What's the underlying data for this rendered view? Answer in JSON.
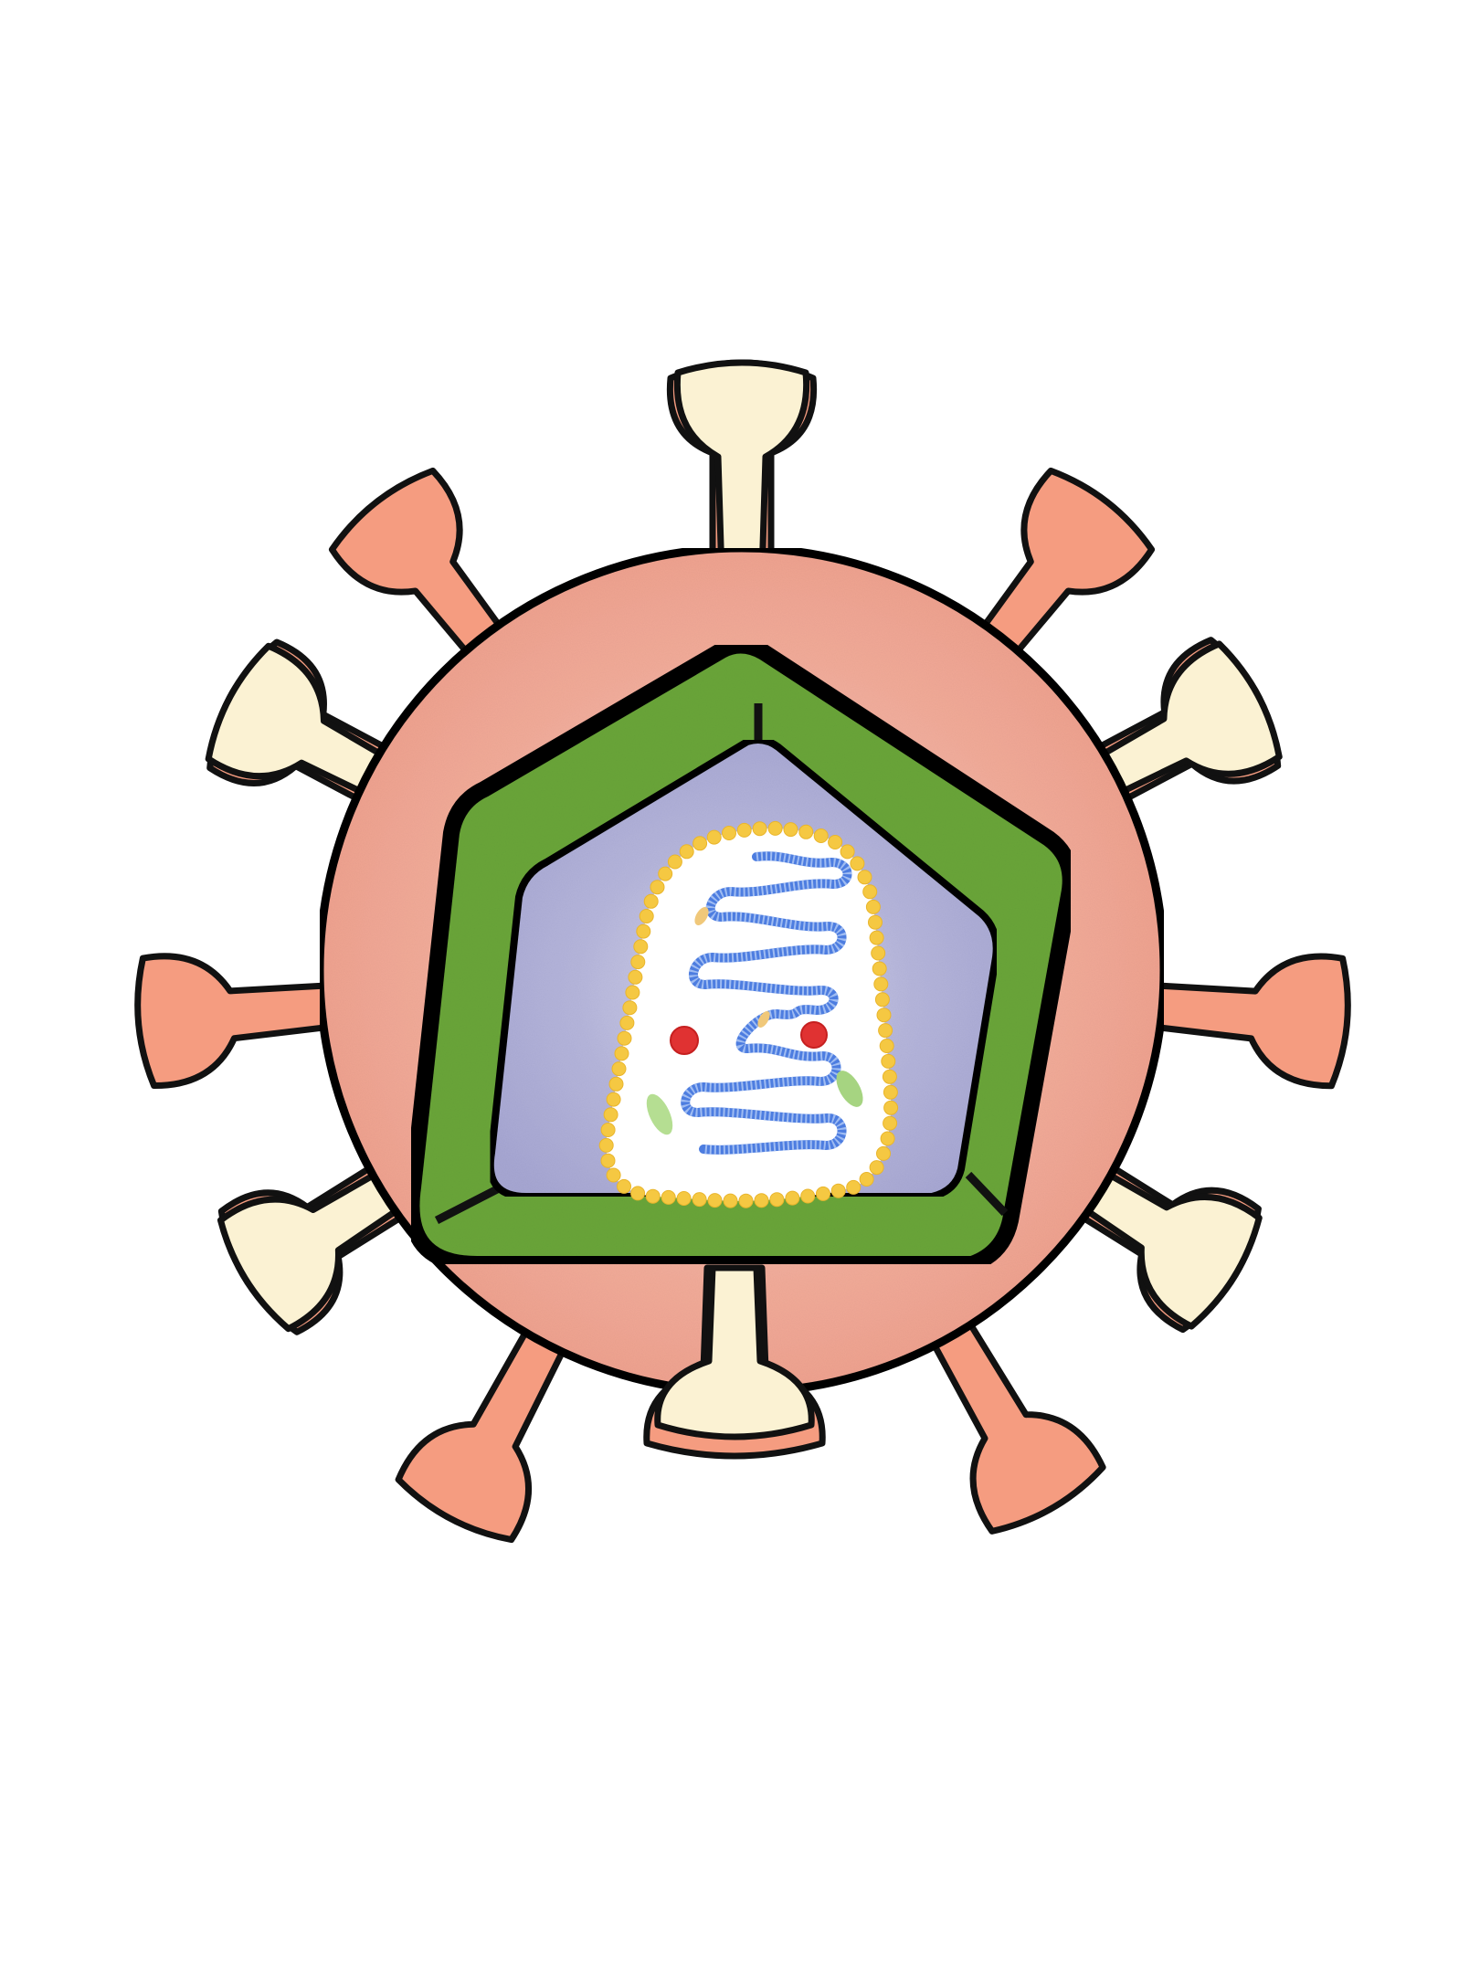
{
  "figure": {
    "subject": "virus-cross-section-illustration",
    "colors": {
      "background": "#ffffff",
      "envelope": "#f2aa98",
      "envelope_light": "#f6bfb2",
      "spike_stem": "#f5a489",
      "spike_head_cream": "#fbf2d3",
      "spike_head_salmon": "#f59c80",
      "outline": "#111111",
      "capsid": "#6ea83b",
      "capsid_dark": "#4e8a2a",
      "core": "#b3b3da",
      "core_light": "#d2d2ea",
      "membrane_bead": "#f5c842",
      "interior": "#ffffff",
      "rna": "#4d7de0",
      "enzyme_red": "#e23434",
      "protein_green": "#b7df95",
      "protein_tan": "#f2cc7c"
    },
    "parts": [
      {
        "name": "envelope",
        "icon": "envelope-circle"
      },
      {
        "name": "spike-proteins",
        "icon": "spike"
      },
      {
        "name": "capsid",
        "icon": "capsid-triangle"
      },
      {
        "name": "matrix-core",
        "icon": "core-triangle"
      },
      {
        "name": "lipid-membrane",
        "icon": "bead-ring"
      },
      {
        "name": "rna-genome",
        "icon": "coil"
      },
      {
        "name": "enzymes",
        "icon": "dot"
      }
    ]
  }
}
